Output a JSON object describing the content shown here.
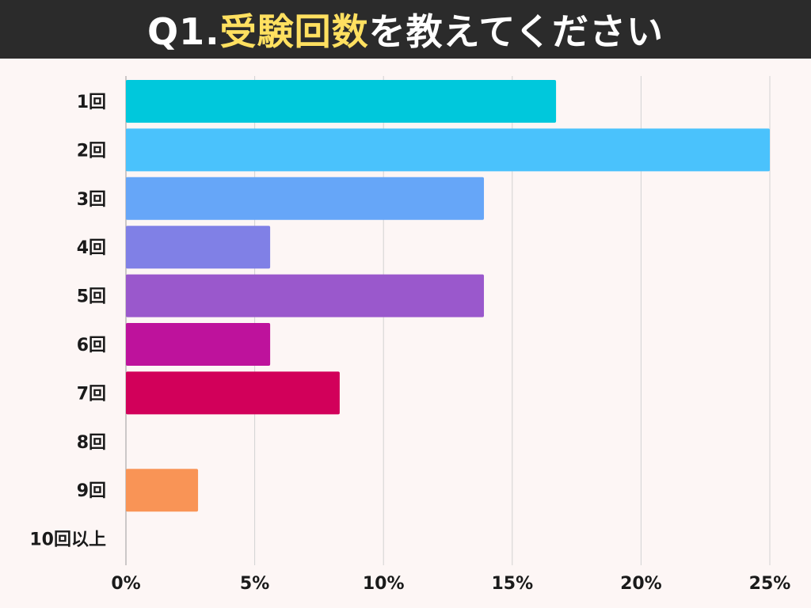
{
  "title": {
    "prefix": "Q1.",
    "highlight": "受験回数",
    "suffix": "を教えてください",
    "highlight_color": "#ffe060"
  },
  "chart_data": {
    "type": "bar",
    "orientation": "horizontal",
    "title": "Q1.受験回数を教えてください",
    "categories": [
      "1回",
      "2回",
      "3回",
      "4回",
      "5回",
      "6回",
      "7回",
      "8回",
      "9回",
      "10回以上"
    ],
    "values": [
      16.7,
      25.0,
      13.9,
      5.6,
      13.9,
      5.6,
      8.3,
      0,
      2.8,
      0
    ],
    "colors": [
      "#00c8dc",
      "#4ac2fc",
      "#66a6f8",
      "#8080e6",
      "#9a58cc",
      "#be129c",
      "#d2005a",
      "#d2005a",
      "#f99456",
      "#f99456"
    ],
    "xlim": [
      0,
      25
    ],
    "xticks": [
      0,
      5,
      10,
      15,
      20,
      25
    ],
    "xtick_labels": [
      "0%",
      "5%",
      "10%",
      "15%",
      "20%",
      "25%"
    ],
    "unit": "%",
    "grid": "vertical",
    "legend": "none"
  }
}
